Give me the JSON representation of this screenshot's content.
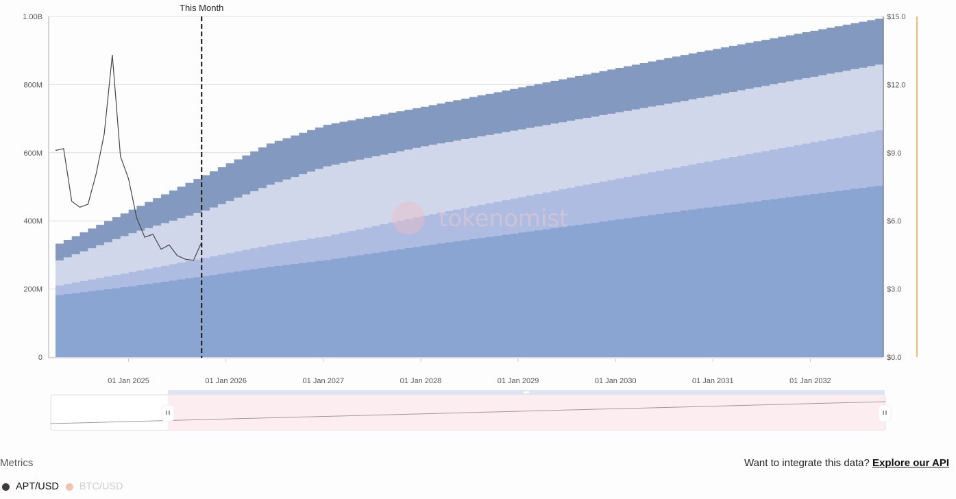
{
  "chart_data": {
    "type": "area",
    "stacked": true,
    "step": "monthly",
    "x_dates": [
      "2024-04",
      "2025-01",
      "2025-10",
      "2026-06",
      "2027-01",
      "2028-01",
      "2030-09",
      "2032-10"
    ],
    "x_range": [
      "2024-04",
      "2032-10"
    ],
    "x_tick_labels": [
      "01 Jan 2025",
      "01 Jan 2026",
      "01 Jan 2027",
      "01 Jan 2028",
      "01 Jan 2029",
      "01 Jan 2030",
      "01 Jan 2031",
      "01 Jan 2032"
    ],
    "y_left": {
      "range": [
        0,
        1000000000
      ],
      "tick_labels": [
        "0",
        "200M",
        "400M",
        "600M",
        "800M",
        "1.00B"
      ]
    },
    "y_right": {
      "range": [
        0,
        15
      ],
      "tick_labels": [
        "$0.0",
        "$3.0",
        "$6.0",
        "$9.0",
        "$12.0",
        "$15.0"
      ]
    },
    "grid": true,
    "series": [
      {
        "values_millions": [
          182,
          208,
          238,
          265,
          285,
          327,
          430,
          506
        ],
        "color": "#8aa5d2"
      },
      {
        "values_millions": [
          28,
          42,
          53,
          64,
          70,
          88,
          131,
          164
        ],
        "color": "#aebce1"
      },
      {
        "values_millions": [
          74,
          114,
          139,
          177,
          205,
          204,
          191,
          193
        ],
        "color": "#d0d7ea"
      },
      {
        "values_millions": [
          49,
          69,
          104,
          121,
          122,
          116,
          135,
          135
        ],
        "color": "#8499bf"
      }
    ],
    "price_line": {
      "name": "APT/USD",
      "axis": "right",
      "start": "2024-04",
      "frequency": "monthly",
      "values": [
        9.1,
        9.18,
        6.86,
        6.6,
        6.73,
        8.06,
        9.82,
        13.31,
        8.84,
        7.85,
        6.13,
        5.28,
        5.41,
        4.75,
        4.94,
        4.47,
        4.31,
        4.26,
        5.06
      ],
      "color": "#444444"
    },
    "annotation": {
      "label": "This Month",
      "date": "2025-10"
    },
    "watermark": "tokenomist"
  },
  "navigator": {
    "selection_start": "2025-10",
    "selection_end": "2032-10"
  },
  "metrics": {
    "title": "Metrics",
    "items": [
      {
        "label": "APT/USD",
        "color": "#3d3a3b",
        "active": true
      },
      {
        "label": "BTC/USD",
        "color": "#f2c3ae",
        "active": false
      }
    ]
  },
  "api": {
    "prompt": "Want to integrate this data?",
    "link": "Explore our API"
  }
}
